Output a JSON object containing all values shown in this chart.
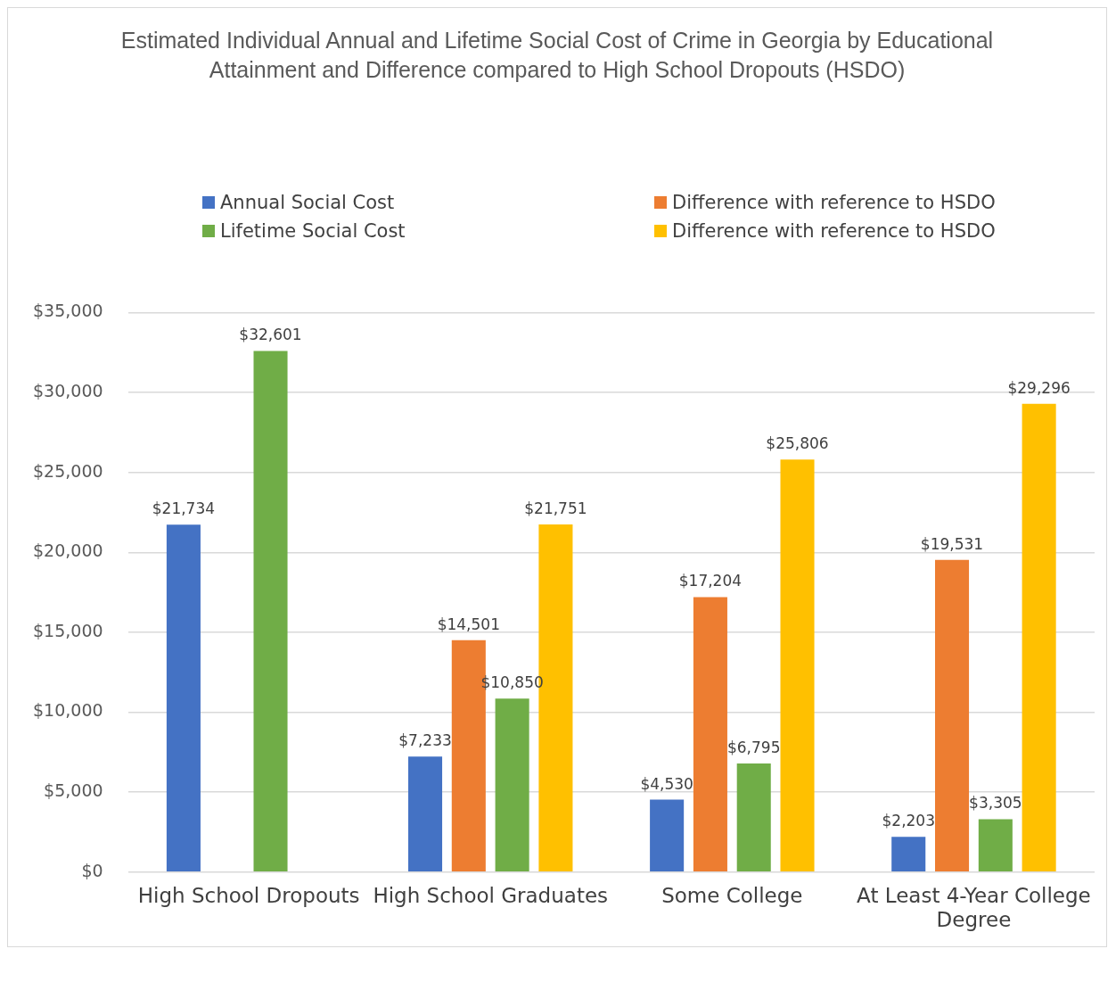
{
  "chart_data": {
    "type": "bar",
    "title": "Estimated Individual Annual and Lifetime Social Cost of Crime in Georgia by Educational Attainment and Difference compared to High School Dropouts (HSDO)",
    "categories": [
      "High School Dropouts",
      "High School Graduates",
      "Some College",
      "At Least 4-Year College Degree"
    ],
    "series": [
      {
        "name": "Annual Social Cost",
        "color": "#4472c4",
        "values": [
          21734,
          7233,
          4530,
          2203
        ],
        "value_labels": [
          "$21,734",
          "$7,233",
          "$4,530",
          "$2,203"
        ]
      },
      {
        "name": "Difference with reference to HSDO",
        "color": "#ed7d31",
        "values": [
          null,
          14501,
          17204,
          19531
        ],
        "value_labels": [
          null,
          "$14,501",
          "$17,204",
          "$19,531"
        ]
      },
      {
        "name": "Lifetime Social Cost",
        "color": "#70ad47",
        "values": [
          32601,
          10850,
          6795,
          3305
        ],
        "value_labels": [
          "$32,601",
          "$10,850",
          "$6,795",
          "$3,305"
        ]
      },
      {
        "name": "Difference with reference to HSDO",
        "color": "#ffc000",
        "values": [
          null,
          21751,
          25806,
          29296
        ],
        "value_labels": [
          null,
          "$21,751",
          "$25,806",
          "$29,296"
        ]
      }
    ],
    "ylim": [
      0,
      35000
    ],
    "yticks": [
      {
        "value": 0,
        "label": "$0"
      },
      {
        "value": 5000,
        "label": "$5,000"
      },
      {
        "value": 10000,
        "label": "$10,000"
      },
      {
        "value": 15000,
        "label": "$15,000"
      },
      {
        "value": 20000,
        "label": "$20,000"
      },
      {
        "value": 25000,
        "label": "$25,000"
      },
      {
        "value": 30000,
        "label": "$30,000"
      },
      {
        "value": 35000,
        "label": "$35,000"
      }
    ],
    "grid": "y",
    "legend": "top"
  }
}
